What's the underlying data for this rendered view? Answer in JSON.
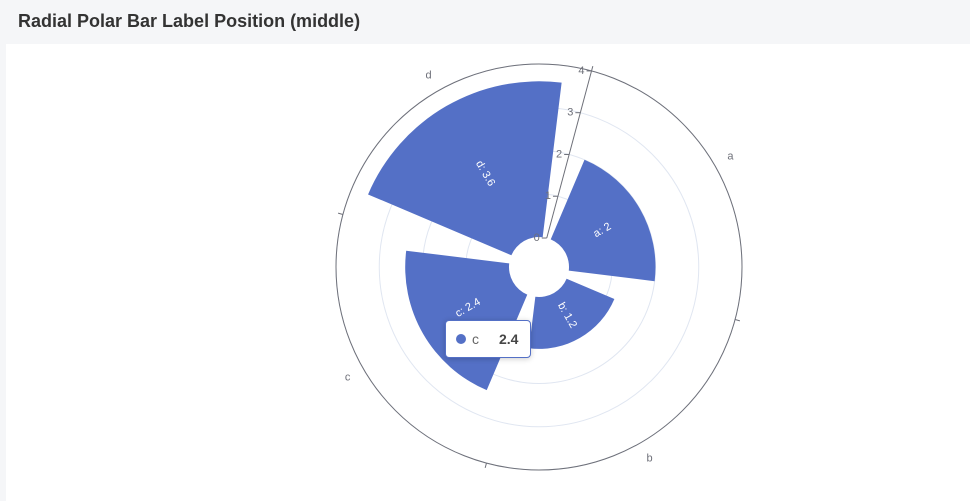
{
  "title": "Radial Polar Bar Label Position (middle)",
  "colors": {
    "series": "#5470c6",
    "axis": "#6e7079",
    "grid": "#e0e6f1",
    "label_text": "#ffffff"
  },
  "tooltip": {
    "name": "c",
    "value": "2.4"
  },
  "chart_data": {
    "type": "bar",
    "polar": true,
    "categories": [
      "a",
      "b",
      "c",
      "d"
    ],
    "values": [
      2,
      1.2,
      2.4,
      3.6
    ],
    "data_labels": [
      "a: 2",
      "b: 1.2",
      "c: 2.4",
      "d: 3.6"
    ],
    "radius_ticks": [
      "0",
      "1",
      "2",
      "3",
      "4"
    ],
    "radius_range": [
      0,
      4
    ],
    "label_position": "middle",
    "grid": true
  }
}
